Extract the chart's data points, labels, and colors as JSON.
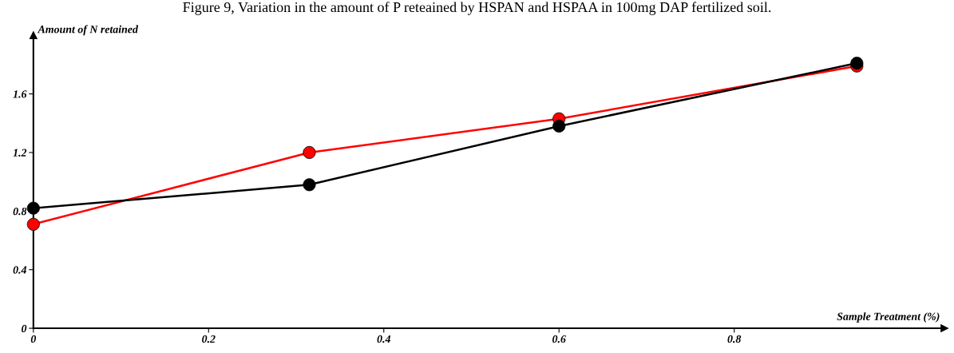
{
  "chart_data": {
    "type": "line",
    "title": "Figure 9, Variation in the amount of P reteained by HSPAN and HSPAA in 100mg DAP fertilized soil.",
    "xlabel": "Sample Treatment (%)",
    "ylabel": "Amount of N retained",
    "x": [
      0,
      0.315,
      0.6,
      0.94
    ],
    "series": [
      {
        "color": "#000000",
        "values": [
          0.82,
          0.98,
          1.38,
          1.81
        ]
      },
      {
        "color": "#ff0000",
        "values": [
          0.71,
          1.2,
          1.43,
          1.79
        ]
      }
    ],
    "xlim": [
      0,
      1.04
    ],
    "xticks": [
      0,
      0.2,
      0.4,
      0.6,
      0.8
    ],
    "ylim": [
      0,
      2.0
    ],
    "yticks": [
      0,
      0.4,
      0.8,
      1.2,
      1.6
    ],
    "grid": false,
    "legend": false,
    "marker": "circle",
    "line_style": "solid"
  }
}
